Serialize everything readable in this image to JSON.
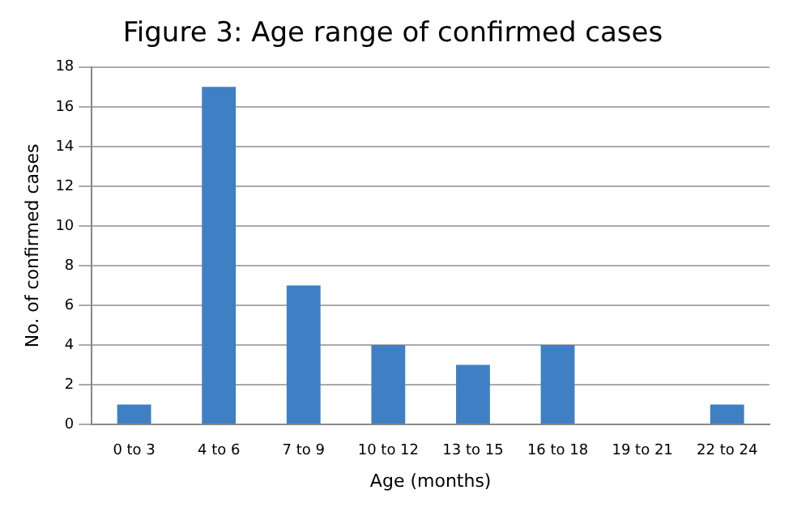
{
  "chart_data": {
    "type": "bar",
    "title": "Figure 3: Age range of confirmed cases",
    "xlabel": "Age (months)",
    "ylabel": "No. of confirmed cases",
    "categories": [
      "0 to 3",
      "4 to 6",
      "7 to 9",
      "10 to 12",
      "13 to 15",
      "16 to 18",
      "19 to 21",
      "22 to 24"
    ],
    "values": [
      1,
      17,
      7,
      4,
      3,
      4,
      0,
      1
    ],
    "color": "#3f7fc4",
    "ylim": [
      0,
      18
    ],
    "yticks": [
      0,
      2,
      4,
      6,
      8,
      10,
      12,
      14,
      16,
      18
    ],
    "grid": "y"
  }
}
